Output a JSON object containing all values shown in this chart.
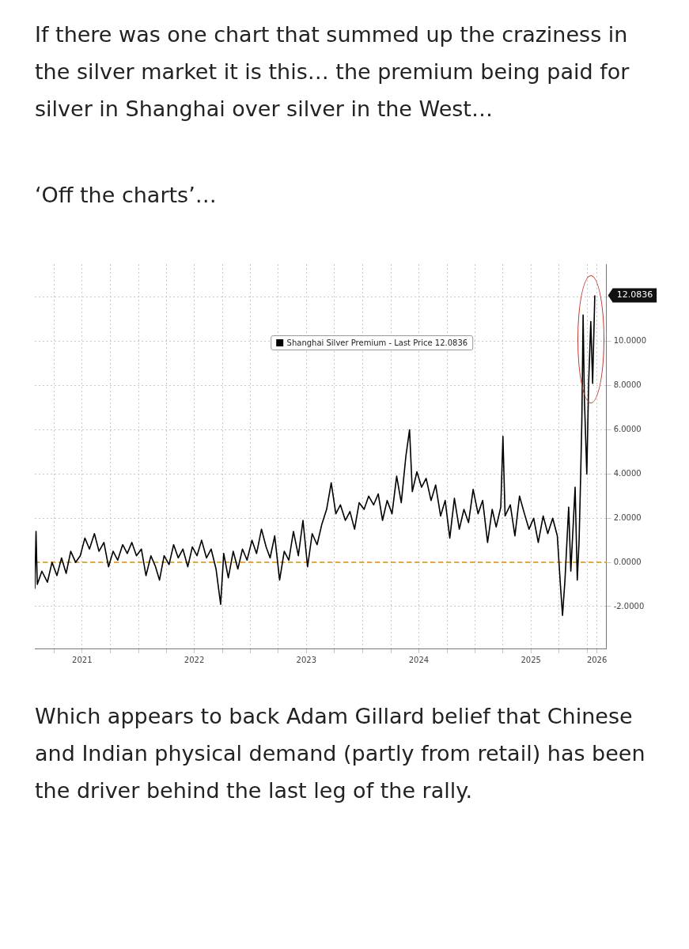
{
  "chart_data": {
    "type": "line",
    "title": "If there was one chart that summed up the craziness in the silver market it is this… the premium being paid for silver in Shanghai over silver in the West…",
    "subtitle": "‘Off the charts’…",
    "annotations": [
      "Which appears to back Adam Gillard belief that Chinese and Indian physical demand (partly from retail) has been the driver behind the last leg of the rally.",
      {
        "text": "12.0836",
        "x": "2026-01-25",
        "y": 12.0836
      }
    ],
    "x": [
      "2021-01-28",
      "2021-02-01",
      "2021-02-05",
      "2021-02-20",
      "2021-03-10",
      "2021-03-25",
      "2021-04-10",
      "2021-04-25",
      "2021-05-10",
      "2021-05-25",
      "2021-06-10",
      "2021-06-25",
      "2021-07-10",
      "2021-07-25",
      "2021-08-10",
      "2021-08-25",
      "2021-09-10",
      "2021-09-25",
      "2021-10-10",
      "2021-10-25",
      "2021-11-10",
      "2021-11-25",
      "2021-12-10",
      "2021-12-25",
      "2022-01-10",
      "2022-01-25",
      "2022-02-10",
      "2022-02-25",
      "2022-03-10",
      "2022-03-25",
      "2022-04-10",
      "2022-04-25",
      "2022-05-10",
      "2022-05-25",
      "2022-06-10",
      "2022-06-25",
      "2022-07-10",
      "2022-07-25",
      "2022-08-10",
      "2022-08-25",
      "2022-09-10",
      "2022-09-25",
      "2022-10-05",
      "2022-10-20",
      "2022-11-05",
      "2022-11-20",
      "2022-12-05",
      "2022-12-20",
      "2023-01-05",
      "2023-01-20",
      "2023-02-05",
      "2023-02-20",
      "2023-03-05",
      "2023-03-20",
      "2023-04-05",
      "2023-04-20",
      "2023-05-05",
      "2023-05-20",
      "2023-06-05",
      "2023-06-20",
      "2023-07-05",
      "2023-07-20",
      "2023-08-05",
      "2023-08-20",
      "2023-09-05",
      "2023-09-20",
      "2023-10-05",
      "2023-10-20",
      "2023-11-05",
      "2023-11-20",
      "2023-12-05",
      "2023-12-20",
      "2024-01-05",
      "2024-01-20",
      "2024-02-05",
      "2024-02-20",
      "2024-03-05",
      "2024-03-20",
      "2024-04-05",
      "2024-04-20",
      "2024-05-05",
      "2024-05-20",
      "2024-06-01",
      "2024-06-10",
      "2024-06-25",
      "2024-07-10",
      "2024-07-25",
      "2024-08-10",
      "2024-08-25",
      "2024-09-10",
      "2024-09-25",
      "2024-10-10",
      "2024-10-25",
      "2024-11-10",
      "2024-11-25",
      "2024-12-10",
      "2024-12-25",
      "2025-01-10",
      "2025-01-25",
      "2025-02-10",
      "2025-02-25",
      "2025-03-10",
      "2025-03-25",
      "2025-04-01",
      "2025-04-08",
      "2025-04-25",
      "2025-05-10",
      "2025-05-25",
      "2025-06-10",
      "2025-06-25",
      "2025-07-10",
      "2025-07-25",
      "2025-08-10",
      "2025-08-25",
      "2025-09-10",
      "2025-09-25",
      "2025-10-05",
      "2025-10-12",
      "2025-10-20",
      "2025-11-01",
      "2025-11-08",
      "2025-11-15",
      "2025-11-22",
      "2025-11-29",
      "2025-12-05",
      "2025-12-10",
      "2025-12-14",
      "2025-12-18",
      "2025-12-22",
      "2025-12-30",
      "2026-01-05",
      "2026-01-12",
      "2026-01-18",
      "2026-01-25"
    ],
    "series": [
      {
        "name": "Shanghai Silver Premium - Last Price 12.0836",
        "color": "#000000",
        "values": [
          -1.2,
          1.4,
          -1.0,
          -0.4,
          -0.9,
          0.0,
          -0.6,
          0.2,
          -0.5,
          0.5,
          0.0,
          0.3,
          1.1,
          0.6,
          1.3,
          0.5,
          0.9,
          -0.2,
          0.5,
          0.1,
          0.8,
          0.4,
          0.9,
          0.3,
          0.6,
          -0.6,
          0.3,
          -0.2,
          -0.8,
          0.3,
          -0.1,
          0.8,
          0.2,
          0.6,
          -0.2,
          0.7,
          0.3,
          1.0,
          0.2,
          0.6,
          -0.3,
          -1.9,
          0.4,
          -0.7,
          0.5,
          -0.3,
          0.6,
          0.1,
          1.0,
          0.4,
          1.5,
          0.7,
          0.2,
          1.2,
          -0.8,
          0.5,
          0.1,
          1.4,
          0.3,
          1.9,
          -0.2,
          1.3,
          0.8,
          1.7,
          2.4,
          3.6,
          2.2,
          2.6,
          1.9,
          2.3,
          1.5,
          2.7,
          2.4,
          3.0,
          2.6,
          3.1,
          1.9,
          2.8,
          2.2,
          3.9,
          2.7,
          4.8,
          6.0,
          3.2,
          4.1,
          3.4,
          3.8,
          2.8,
          3.5,
          2.1,
          2.8,
          1.1,
          2.9,
          1.5,
          2.4,
          1.8,
          3.3,
          2.2,
          2.8,
          0.9,
          2.4,
          1.6,
          2.5,
          5.7,
          2.1,
          2.6,
          1.2,
          3.0,
          2.2,
          1.5,
          2.0,
          0.9,
          2.1,
          1.3,
          2.0,
          1.2,
          -1.0,
          -2.4,
          -0.8,
          2.5,
          -0.4,
          1.5,
          3.4,
          -0.8,
          1.0,
          3.9,
          6.5,
          11.2,
          7.5,
          4.0,
          8.1,
          10.9,
          8.1,
          12.0836
        ]
      }
    ],
    "xlim": [
      "2021-01-28",
      "2026-03-04"
    ],
    "xticks": [
      {
        "value": "2021-04-01",
        "label": null
      },
      {
        "value": "2021-07-01",
        "label": "2021"
      },
      {
        "value": "2021-10-01",
        "label": null
      },
      {
        "value": "2022-01-01",
        "label": null
      },
      {
        "value": "2022-04-01",
        "label": null
      },
      {
        "value": "2022-07-01",
        "label": "2022"
      },
      {
        "value": "2022-10-01",
        "label": null
      },
      {
        "value": "2023-01-01",
        "label": null
      },
      {
        "value": "2023-04-01",
        "label": null
      },
      {
        "value": "2023-07-01",
        "label": "2023"
      },
      {
        "value": "2023-10-01",
        "label": null
      },
      {
        "value": "2024-01-01",
        "label": null
      },
      {
        "value": "2024-04-01",
        "label": null
      },
      {
        "value": "2024-07-01",
        "label": "2024"
      },
      {
        "value": "2024-10-01",
        "label": null
      },
      {
        "value": "2025-01-01",
        "label": null
      },
      {
        "value": "2025-04-01",
        "label": null
      },
      {
        "value": "2025-07-01",
        "label": "2025"
      },
      {
        "value": "2025-10-01",
        "label": null
      },
      {
        "value": "2026-01-01",
        "label": null
      },
      {
        "value": "2026-02-01",
        "label": "2026"
      }
    ],
    "ylim": [
      -3.9,
      13.5
    ],
    "yticks": [
      {
        "value": -2,
        "label": "-2.0000"
      },
      {
        "value": 0,
        "label": "0.0000"
      },
      {
        "value": 2,
        "label": "2.0000"
      },
      {
        "value": 4,
        "label": "4.0000"
      },
      {
        "value": 6,
        "label": "6.0000"
      },
      {
        "value": 8,
        "label": "8.0000"
      },
      {
        "value": 10,
        "label": "10.0000"
      },
      {
        "value": 12,
        "label": null
      }
    ],
    "ref_lines": [
      {
        "axis": "y",
        "value": 0,
        "color": "#e8a838",
        "line_style": "dashed"
      }
    ],
    "grid": true,
    "legend": "top"
  }
}
